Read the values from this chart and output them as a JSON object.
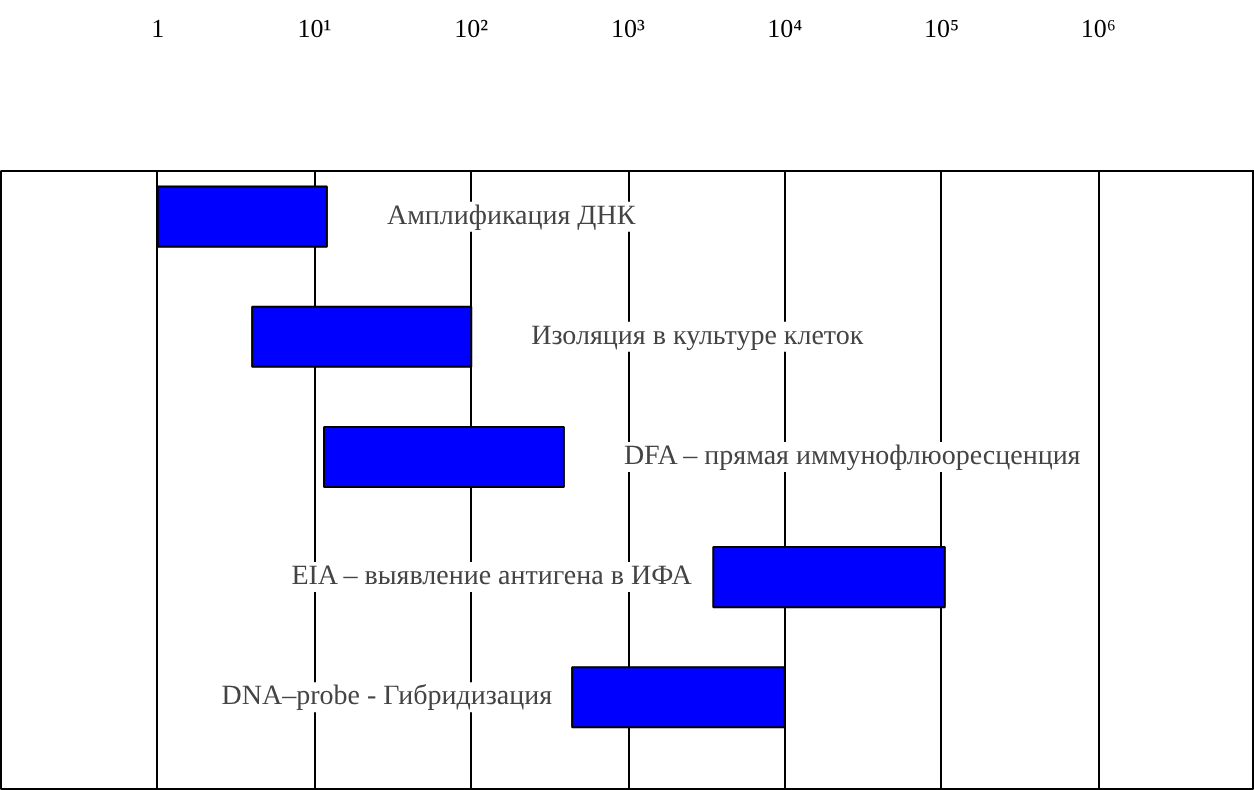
{
  "chart_data": {
    "type": "bar",
    "orientation": "horizontal",
    "log": "x",
    "categories": [
      "Амплификация ДНК",
      "Изоляция в культуре клеток",
      "DFA – прямая иммунофлюоресценция",
      "EIA – выявление антигена в ИФА",
      "DNA–probe - Гибридизация"
    ],
    "base": [
      1,
      4,
      11.5,
      3500,
      440
    ],
    "values": [
      11,
      96,
      378.5,
      101500,
      9560
    ],
    "color": "#0000ff",
    "xlim": [
      0.1,
      10000000
    ],
    "xticks": [
      1,
      {
        "value": 10,
        "label": "10¹"
      },
      {
        "value": 100,
        "label": "10²"
      },
      {
        "value": 1000,
        "label": "10³"
      },
      {
        "value": 10000,
        "label": "10⁴"
      },
      {
        "value": 100000,
        "label": "10⁵"
      },
      {
        "value": 1000000,
        "label": "10⁶"
      }
    ],
    "grid": "x",
    "tick_labels": "x"
  }
}
